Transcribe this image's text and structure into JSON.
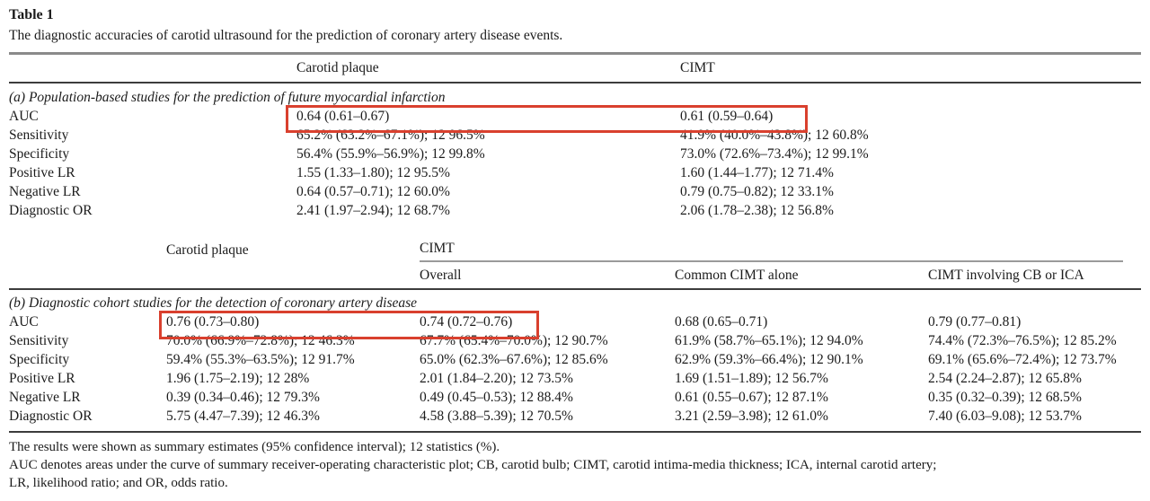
{
  "page": {
    "title": "Table 1",
    "subtitle": "The diagnostic accuracies of carotid ultrasound for the prediction of coronary artery disease events."
  },
  "table_a": {
    "columns": [
      "",
      "Carotid plaque",
      "CIMT"
    ],
    "section_label": "(a) Population-based studies for the prediction of future myocardial infarction",
    "rows": [
      {
        "label": "AUC",
        "values": [
          "0.64 (0.61–0.67)",
          "0.61 (0.59–0.64)"
        ]
      },
      {
        "label": "Sensitivity",
        "values": [
          "65.2% (63.2%–67.1%); 12 96.5%",
          "41.9% (40.0%–43.8%); 12 60.8%"
        ]
      },
      {
        "label": "Specificity",
        "values": [
          "56.4% (55.9%–56.9%); 12 99.8%",
          "73.0% (72.6%–73.4%); 12 99.1%"
        ]
      },
      {
        "label": "Positive LR",
        "values": [
          "1.55 (1.33–1.80); 12 95.5%",
          "1.60 (1.44–1.77); 12 71.4%"
        ]
      },
      {
        "label": "Negative LR",
        "values": [
          "0.64 (0.57–0.71); 12 60.0%",
          "0.79 (0.75–0.82); 12 33.1%"
        ]
      },
      {
        "label": "Diagnostic OR",
        "values": [
          "2.41 (1.97–2.94); 12 68.7%",
          "2.06 (1.78–2.38); 12 56.8%"
        ]
      }
    ]
  },
  "table_b": {
    "group_headers": [
      "",
      "Carotid plaque",
      "CIMT"
    ],
    "sub_headers": [
      "Overall",
      "Common CIMT alone",
      "CIMT involving CB or ICA"
    ],
    "section_label": "(b) Diagnostic cohort studies for the detection of coronary artery disease",
    "rows": [
      {
        "label": "AUC",
        "values": [
          "0.76 (0.73–0.80)",
          "0.74 (0.72–0.76)",
          "0.68 (0.65–0.71)",
          "0.79 (0.77–0.81)"
        ]
      },
      {
        "label": "Sensitivity",
        "values": [
          "70.0% (66.9%–72.8%); 12 46.3%",
          "67.7% (65.4%–70.0%); 12 90.7%",
          "61.9% (58.7%–65.1%); 12 94.0%",
          "74.4% (72.3%–76.5%); 12 85.2%"
        ]
      },
      {
        "label": "Specificity",
        "values": [
          "59.4% (55.3%–63.5%); 12 91.7%",
          "65.0% (62.3%–67.6%); 12 85.6%",
          "62.9% (59.3%–66.4%); 12 90.1%",
          "69.1% (65.6%–72.4%); 12 73.7%"
        ]
      },
      {
        "label": "Positive LR",
        "values": [
          "1.96 (1.75–2.19); 12 28%",
          "2.01 (1.84–2.20); 12 73.5%",
          "1.69 (1.51–1.89); 12 56.7%",
          "2.54 (2.24–2.87); 12 65.8%"
        ]
      },
      {
        "label": "Negative LR",
        "values": [
          "0.39 (0.34–0.46); 12 79.3%",
          "0.49 (0.45–0.53); 12 88.4%",
          "0.61 (0.55–0.67); 12 87.1%",
          "0.35 (0.32–0.39); 12 68.5%"
        ]
      },
      {
        "label": "Diagnostic OR",
        "values": [
          "5.75 (4.47–7.39); 12 46.3%",
          "4.58 (3.88–5.39); 12 70.5%",
          "3.21 (2.59–3.98); 12 61.0%",
          "7.40 (6.03–9.08); 12 53.7%"
        ]
      }
    ]
  },
  "footnotes": [
    "The results were shown as summary estimates (95% confidence interval); 12 statistics (%).",
    "AUC denotes areas under the curve of summary receiver-operating characteristic plot; CB, carotid bulb; CIMT, carotid intima-media thickness; ICA, internal carotid artery;",
    "LR, likelihood ratio; and OR, odds ratio."
  ],
  "annotations": {
    "highlight_color": "#d9402e",
    "highlight_boxes": [
      {
        "section": "a",
        "row": "AUC"
      },
      {
        "section": "b",
        "row": "AUC"
      }
    ]
  }
}
